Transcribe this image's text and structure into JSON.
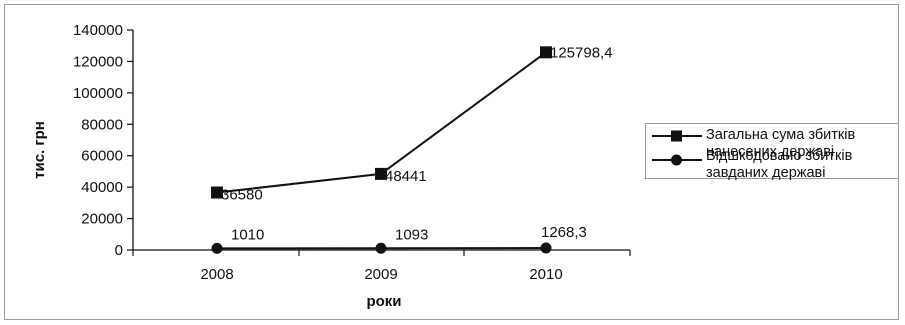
{
  "chart_data": {
    "type": "line",
    "title": "",
    "xlabel": "роки",
    "ylabel": "тис. грн",
    "categories": [
      "2008",
      "2009",
      "2010"
    ],
    "ylim": [
      0,
      140000
    ],
    "yticks": [
      "0",
      "20000",
      "40000",
      "60000",
      "80000",
      "100000",
      "120000",
      "140000"
    ],
    "grid": false,
    "legend_position": "right",
    "series": [
      {
        "name": "Загальна сума збитків нанесених державі",
        "marker": "square",
        "values": [
          36580,
          48441,
          125798.4
        ],
        "labels": [
          "36580",
          "48441",
          "125798,4"
        ],
        "color": "#111111"
      },
      {
        "name": "Відшкодовано збитків завданих державі",
        "marker": "circle",
        "values": [
          1010,
          1093,
          1268.3
        ],
        "labels": [
          "1010",
          "1093",
          "1268,3"
        ],
        "color": "#111111"
      }
    ]
  }
}
